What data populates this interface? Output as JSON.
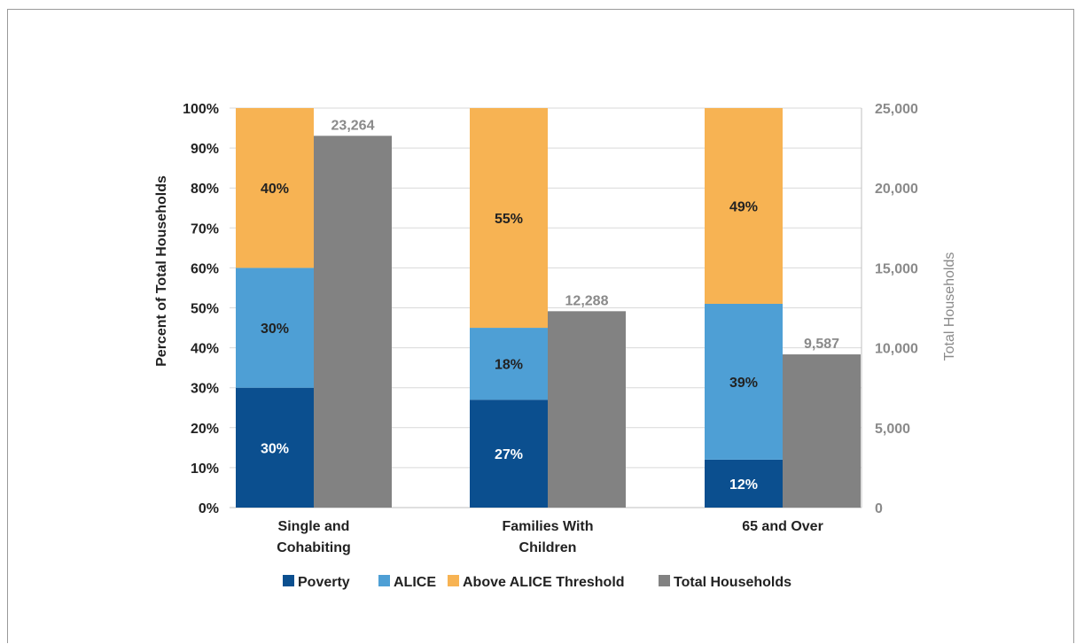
{
  "chart_data": {
    "type": "bar",
    "categories": [
      [
        "Single and",
        "Cohabiting"
      ],
      [
        "Families With",
        "Children"
      ],
      [
        "65 and Over"
      ]
    ],
    "stacked_series": [
      {
        "name": "Poverty",
        "color": "#0b4f8f",
        "values": [
          30,
          27,
          12
        ],
        "labels": [
          "30%",
          "27%",
          "12%"
        ]
      },
      {
        "name": "ALICE",
        "color": "#4e9fd5",
        "values": [
          30,
          18,
          39
        ],
        "labels": [
          "30%",
          "18%",
          "39%"
        ]
      },
      {
        "name": "Above ALICE Threshold",
        "color": "#f7b353",
        "values": [
          40,
          55,
          49
        ],
        "labels": [
          "40%",
          "55%",
          "49%"
        ]
      }
    ],
    "secondary_series": {
      "name": "Total Households",
      "color": "#828282",
      "values": [
        23264,
        12288,
        9587
      ],
      "labels": [
        "23,264",
        "12,288",
        "9,587"
      ]
    },
    "ylabel": "Percent of Total Households",
    "ylabel_right": "Total Households",
    "ylim": [
      0,
      100
    ],
    "ylim_right": [
      0,
      25000
    ],
    "yticks": [
      "0%",
      "10%",
      "20%",
      "30%",
      "40%",
      "50%",
      "60%",
      "70%",
      "80%",
      "90%",
      "100%"
    ],
    "yticks_right": [
      "0",
      "5,000",
      "10,000",
      "15,000",
      "20,000",
      "25,000"
    ],
    "legend": [
      "Poverty",
      "ALICE",
      "Above ALICE Threshold",
      "Total Households"
    ],
    "legend_position": "bottom",
    "grid": true
  }
}
